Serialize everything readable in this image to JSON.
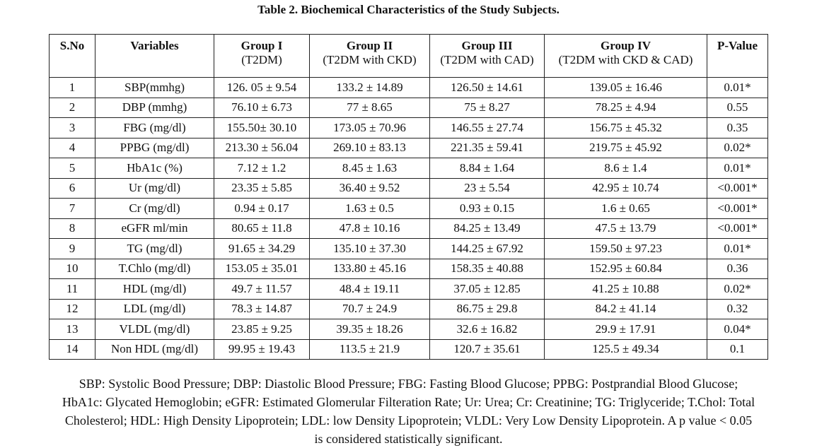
{
  "caption": "Table 2. Biochemical Characteristics of the Study Subjects.",
  "headers": {
    "sno": "S.No",
    "variables": "Variables",
    "g1_title": "Group I",
    "g1_sub": "(T2DM)",
    "g2_title": "Group II",
    "g2_sub": "(T2DM with CKD)",
    "g3_title": "Group III",
    "g3_sub": "(T2DM with CAD)",
    "g4_title": "Group IV",
    "g4_sub": "(T2DM with CKD & CAD)",
    "pvalue": "P-Value"
  },
  "rows": [
    {
      "sno": "1",
      "var": "SBP(mmhg)",
      "g1": "126. 05 ± 9.54",
      "g2": "133.2 ± 14.89",
      "g3": "126.50 ± 14.61",
      "g4": "139.05 ± 16.46",
      "p": "0.01*"
    },
    {
      "sno": "2",
      "var": "DBP (mmhg)",
      "g1": "76.10 ± 6.73",
      "g2": "77 ± 8.65",
      "g3": "75 ± 8.27",
      "g4": "78.25 ± 4.94",
      "p": "0.55"
    },
    {
      "sno": "3",
      "var": "FBG (mg/dl)",
      "g1": "155.50± 30.10",
      "g2": "173.05 ± 70.96",
      "g3": "146.55 ± 27.74",
      "g4": "156.75 ± 45.32",
      "p": "0.35"
    },
    {
      "sno": "4",
      "var": "PPBG (mg/dl)",
      "g1": "213.30 ± 56.04",
      "g2": "269.10 ± 83.13",
      "g3": "221.35 ± 59.41",
      "g4": "219.75 ± 45.92",
      "p": "0.02*"
    },
    {
      "sno": "5",
      "var": "HbA1c (%)",
      "g1": "7.12 ± 1.2",
      "g2": "8.45 ± 1.63",
      "g3": "8.84 ± 1.64",
      "g4": "8.6 ± 1.4",
      "p": "0.01*"
    },
    {
      "sno": "6",
      "var": "Ur (mg/dl)",
      "g1": "23.35 ± 5.85",
      "g2": "36.40 ± 9.52",
      "g3": "23 ± 5.54",
      "g4": "42.95 ± 10.74",
      "p": "<0.001*"
    },
    {
      "sno": "7",
      "var": "Cr (mg/dl)",
      "g1": "0.94 ± 0.17",
      "g2": "1.63 ± 0.5",
      "g3": "0.93 ± 0.15",
      "g4": "1.6 ± 0.65",
      "p": "<0.001*"
    },
    {
      "sno": "8",
      "var": "eGFR ml/min",
      "g1": "80.65 ± 11.8",
      "g2": "47.8 ± 10.16",
      "g3": "84.25 ± 13.49",
      "g4": "47.5 ± 13.79",
      "p": "<0.001*"
    },
    {
      "sno": "9",
      "var": "TG (mg/dl)",
      "g1": "91.65 ± 34.29",
      "g2": "135.10 ± 37.30",
      "g3": "144.25 ± 67.92",
      "g4": "159.50 ± 97.23",
      "p": "0.01*"
    },
    {
      "sno": "10",
      "var": "T.Chlo (mg/dl)",
      "g1": "153.05 ± 35.01",
      "g2": "133.80 ± 45.16",
      "g3": "158.35 ± 40.88",
      "g4": "152.95 ± 60.84",
      "p": "0.36"
    },
    {
      "sno": "11",
      "var": "HDL (mg/dl)",
      "g1": "49.7 ± 11.57",
      "g2": "48.4 ± 19.11",
      "g3": "37.05 ± 12.85",
      "g4": "41.25 ± 10.88",
      "p": "0.02*"
    },
    {
      "sno": "12",
      "var": "LDL (mg/dl)",
      "g1": "78.3 ± 14.87",
      "g2": "70.7 ± 24.9",
      "g3": "86.75 ± 29.8",
      "g4": "84.2 ± 41.14",
      "p": "0.32"
    },
    {
      "sno": "13",
      "var": "VLDL (mg/dl)",
      "g1": "23.85 ± 9.25",
      "g2": "39.35 ± 18.26",
      "g3": "32.6 ± 16.82",
      "g4": "29.9 ± 17.91",
      "p": "0.04*"
    },
    {
      "sno": "14",
      "var": "Non HDL (mg/dl)",
      "g1": "99.95 ± 19.43",
      "g2": "113.5 ± 21.9",
      "g3": "120.7 ± 35.61",
      "g4": "125.5 ± 49.34",
      "p": "0.1"
    }
  ],
  "footnote": {
    "line1": "SBP: Systolic Bood Pressure; DBP: Diastolic Blood Pressure; FBG: Fasting Blood Glucose; PPBG: Postprandial Blood Glucose;",
    "line2": "HbA1c: Glycated Hemoglobin; eGFR: Estimated Glomerular Filteration Rate; Ur: Urea; Cr: Creatinine; TG: Triglyceride; T.Chol: Total",
    "line3": "Cholesterol; HDL: High Density Lipoprotein; LDL: low Density Lipoprotein; VLDL: Very Low Density Lipoprotein. A p value < 0.05",
    "line4": "is considered statistically significant."
  }
}
